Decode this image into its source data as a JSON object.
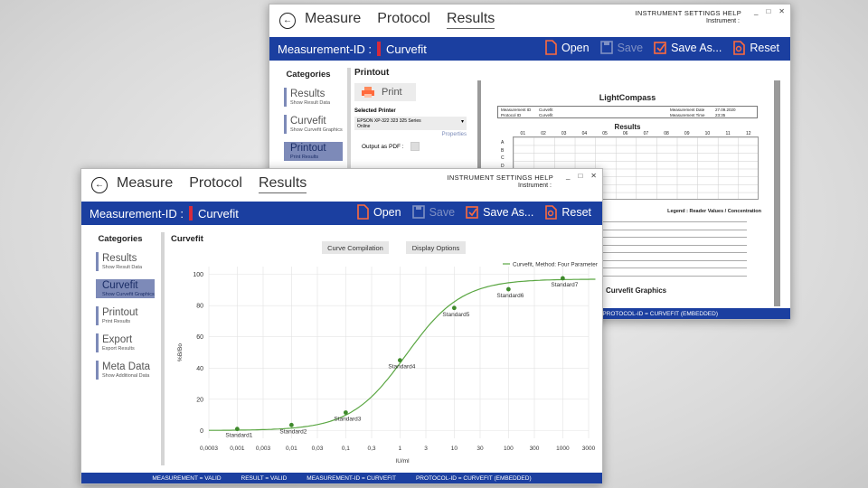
{
  "nav": {
    "tabs": [
      "Measure",
      "Protocol",
      "Results"
    ],
    "active": "Results"
  },
  "topmenu": "INSTRUMENT  SETTINGS  HELP",
  "instrument_label": "Instrument :",
  "window_controls": [
    "_",
    "□",
    "✕"
  ],
  "measurement": {
    "label": "Measurement-ID :",
    "value": "Curvefit"
  },
  "actions": {
    "open": "Open",
    "save": "Save",
    "save_as": "Save As...",
    "reset": "Reset"
  },
  "sidebar": {
    "heading": "Categories",
    "back_items": [
      {
        "label": "Results",
        "sub": "Show Result Data"
      },
      {
        "label": "Curvefit",
        "sub": "Show Curvefit Graphics"
      },
      {
        "label": "Printout",
        "sub": "Print Results"
      }
    ],
    "front_items": [
      {
        "label": "Results",
        "sub": "Show Result Data"
      },
      {
        "label": "Curvefit",
        "sub": "Show Curvefit Graphics"
      },
      {
        "label": "Printout",
        "sub": "Print Results"
      },
      {
        "label": "Export",
        "sub": "Export Results"
      },
      {
        "label": "Meta Data",
        "sub": "Show Additional Data"
      }
    ]
  },
  "printout": {
    "title": "Printout",
    "print_button": "Print",
    "selected_printer_label": "Selected Printer",
    "printer_value_line1": "EPSON XP-322 323 325 Series",
    "printer_value_line2": "Online",
    "properties": "Properties",
    "output_pdf": "Output as PDF :"
  },
  "preview": {
    "title": "LightCompass",
    "meta": {
      "measurement_id_label": "Measurement ID",
      "measurement_id": "Curvefit",
      "protocol_id_label": "Protocol ID",
      "protocol_id": "Curvefit",
      "date_label": "Measurement Date",
      "date": "27.09.2020",
      "time_label": "Measurement Time",
      "time": "23:35"
    },
    "results_title": "Results",
    "columns": [
      "01",
      "02",
      "03",
      "04",
      "05",
      "06",
      "07",
      "08",
      "09",
      "10",
      "11",
      "12"
    ],
    "rows": [
      "A",
      "B",
      "C",
      "D",
      "E",
      "F",
      "G",
      "H"
    ],
    "legend": "Legend :   Reader Values / Concentration",
    "curvefit_graphics": "Curvefit Graphics"
  },
  "curvefit": {
    "title": "Curvefit",
    "curve_compilation": "Curve Compilation",
    "display_options": "Display Options"
  },
  "status": {
    "measurement": "MEASUREMENT = VALID",
    "result": "RESULT = VALID",
    "measurement_id": "MEASUREMENT-ID = CURVEFIT",
    "protocol_id": "PROTOCOL-ID = CURVEFIT (EMBEDDED)"
  },
  "chart_data": {
    "type": "scatter",
    "legend": "Curvefit, Method: Four Parameter",
    "legend_position": "top-right",
    "xlabel": "IU/ml",
    "ylabel": "%B/Bo",
    "x_scale": "log",
    "x_ticks": [
      "0,0003",
      "0,001",
      "0,003",
      "0,01",
      "0,03",
      "0,1",
      "0,3",
      "1",
      "3",
      "10",
      "30",
      "100",
      "300",
      "1000",
      "3000"
    ],
    "x_tick_values": [
      0.0003,
      0.001,
      0.003,
      0.01,
      0.03,
      0.1,
      0.3,
      1,
      3,
      10,
      30,
      100,
      300,
      1000,
      3000
    ],
    "xlim": [
      0.0003,
      3000
    ],
    "y_ticks": [
      0,
      20,
      40,
      60,
      80,
      100
    ],
    "ylim": [
      -5,
      105
    ],
    "grid": true,
    "points": [
      {
        "name": "Standard1",
        "x": 0.001,
        "y": 1
      },
      {
        "name": "Standard2",
        "x": 0.01,
        "y": 3.5
      },
      {
        "name": "Standard3",
        "x": 0.1,
        "y": 11.5
      },
      {
        "name": "Standard4",
        "x": 1,
        "y": 45
      },
      {
        "name": "Standard5",
        "x": 10,
        "y": 78.5
      },
      {
        "name": "Standard6",
        "x": 100,
        "y": 90.5
      },
      {
        "name": "Standard7",
        "x": 1000,
        "y": 97.5
      }
    ],
    "curve": {
      "model": "four-parameter logistic",
      "bottom": 0,
      "top": 97,
      "ec50": 1.3,
      "hill": 0.85,
      "x_range": [
        0.0003,
        4000
      ]
    },
    "colors": {
      "curve": "#5aa642",
      "points": "#3f8a2c"
    }
  }
}
